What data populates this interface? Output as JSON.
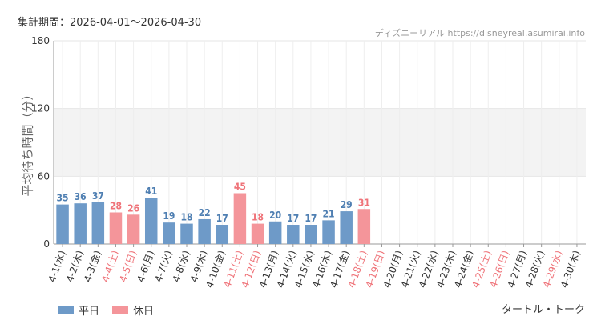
{
  "header": {
    "period": "集計期間：2026-04-01～2026-04-30",
    "credit": "ディズニーリアル https://disneyreal.asumirai.info"
  },
  "footer": {
    "attraction": "タートル・トーク"
  },
  "legend": [
    {
      "label": "平日",
      "color": "#6e9ac8"
    },
    {
      "label": "休日",
      "color": "#f4959a"
    }
  ],
  "colors": {
    "weekday": "#6e9ac8",
    "holiday": "#f4959a",
    "weekday_label": "#4f7fb2",
    "holiday_label": "#ef7379",
    "weekday_tick": "#333333",
    "holiday_tick": "#ef7379",
    "band": "#f3f3f3",
    "grid": "#e6e6e6"
  },
  "chart_data": {
    "type": "bar",
    "xlabel": "",
    "ylabel": "平均待ち時間（分）",
    "ylim": [
      0,
      180
    ],
    "yticks": [
      0,
      60,
      120,
      180
    ],
    "shaded_range": [
      60,
      120
    ],
    "grid": true,
    "legend_position": "bottom-left",
    "categories": [
      "4-1(水)",
      "4-2(木)",
      "4-3(金)",
      "4-4(土)",
      "4-5(日)",
      "4-6(月)",
      "4-7(火)",
      "4-8(水)",
      "4-9(木)",
      "4-10(金)",
      "4-11(土)",
      "4-12(日)",
      "4-13(月)",
      "4-14(火)",
      "4-15(水)",
      "4-16(木)",
      "4-17(金)",
      "4-18(土)",
      "4-19(日)",
      "4-20(月)",
      "4-21(火)",
      "4-22(水)",
      "4-23(木)",
      "4-24(金)",
      "4-25(土)",
      "4-26(日)",
      "4-27(月)",
      "4-28(火)",
      "4-29(水)",
      "4-30(木)"
    ],
    "values": [
      35,
      36,
      37,
      28,
      26,
      41,
      19,
      18,
      22,
      17,
      45,
      18,
      20,
      17,
      17,
      21,
      29,
      31,
      null,
      null,
      null,
      null,
      null,
      null,
      null,
      null,
      null,
      null,
      null,
      null
    ],
    "holiday": [
      false,
      false,
      false,
      true,
      true,
      false,
      false,
      false,
      false,
      false,
      true,
      true,
      false,
      false,
      false,
      false,
      false,
      true,
      true,
      false,
      false,
      false,
      false,
      false,
      true,
      true,
      false,
      false,
      true,
      false
    ],
    "series": [
      {
        "name": "平日"
      },
      {
        "name": "休日"
      }
    ]
  }
}
